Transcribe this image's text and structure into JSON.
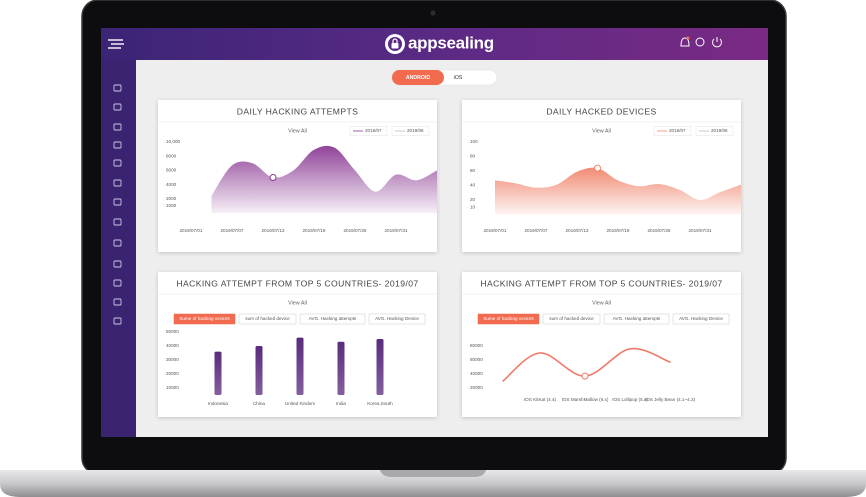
{
  "header": {
    "logo": "appsealing"
  },
  "toggle": [
    "ANDROID",
    "iOS"
  ],
  "chart_data": [
    {
      "type": "area",
      "title": "DAILY HACKING ATTEMPTS",
      "link": "View All",
      "legend": [
        "2019/07",
        "2019/06"
      ],
      "categories": [
        "2019/07/01",
        null,
        "2019/07/07",
        null,
        "2019/07/13",
        null,
        "2019/07/19",
        null,
        "2019/07/25",
        null,
        "2019/07/31",
        null,
        null
      ],
      "values": [
        null,
        2400,
        6700,
        7000,
        5000,
        6000,
        8900,
        9200,
        6000,
        3000,
        5400,
        4600,
        6000
      ],
      "color": "#8a3a93",
      "ylim": [
        0,
        10000
      ],
      "yticks": [
        {
          "value": 10000,
          "label": "10,000"
        },
        8000,
        6000,
        4000,
        2000,
        1000
      ]
    },
    {
      "type": "area",
      "title": "DAILY HACKED DEVICES",
      "link": "View All",
      "legend": [
        "2019/07",
        "2019/06"
      ],
      "categories": [
        "2019/07/01",
        null,
        "2019/07/07",
        null,
        "2019/07/13",
        null,
        "2019/07/19",
        null,
        "2019/07/25",
        null,
        "2019/07/31",
        null,
        null
      ],
      "values": [
        47,
        43,
        37,
        41,
        59,
        64,
        47,
        39,
        42,
        34,
        20,
        31,
        41
      ],
      "color": "#f0846c",
      "ylim": [
        0,
        100
      ],
      "yticks": [
        100,
        80,
        60,
        40,
        20,
        10
      ]
    },
    {
      "type": "bar",
      "title": "HACKING ATTEMPT FROM TOP 5 COUNTRIES- 2019/07",
      "link": "View All",
      "buttons": [
        "Sume of hacking vectors",
        "sum of hacked device",
        "AVG. Hacking attempts",
        "AVG. Hacking Device"
      ],
      "categories": [
        "Indonesia",
        "China",
        "United Kindom",
        "India",
        "Korea,South"
      ],
      "values": [
        36000,
        40000,
        46000,
        43000,
        45000
      ],
      "color": "#5b2a7e",
      "ylim": [
        5000,
        50000
      ],
      "yticks": [
        50000,
        40000,
        30000,
        20000,
        10000
      ]
    },
    {
      "type": "line",
      "title": "HACKING ATTEMPT FROM TOP 5 COUNTRIES- 2019/07",
      "link": "View All",
      "buttons": [
        "Sume of hacking vectors",
        "sum of hacked device",
        "AVG. Hacking attempts",
        "AVG. Hacking Device"
      ],
      "categories": [
        null,
        "IOS KitKat (4.4)",
        "IOS MarshMallow (6.x)",
        "IOS Lollipop (5.x)",
        "IOS Jelly Bean (4.1~4.3)"
      ],
      "values": [
        30000,
        70000,
        37000,
        76000,
        57000
      ],
      "color": "#f07a6a",
      "ylim": [
        20000,
        80000
      ],
      "yticks": [
        80000,
        60000,
        40000,
        20000
      ]
    }
  ]
}
